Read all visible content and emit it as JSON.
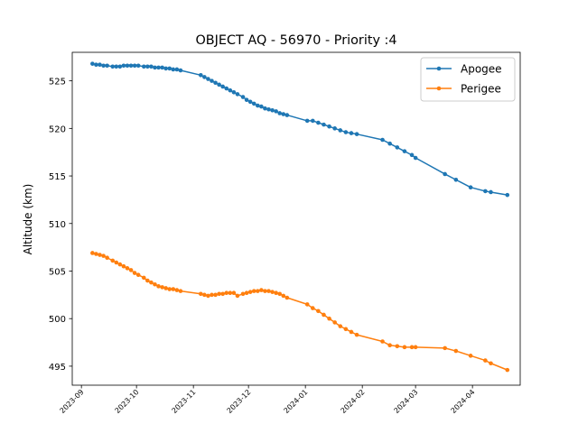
{
  "chart_data": {
    "type": "line",
    "title": "OBJECT AQ - 56970 - Priority :4",
    "xlabel": "",
    "ylabel": "Altitude (km)",
    "x_ticks": [
      "2023-09",
      "2023-10",
      "2023-11",
      "2023-12",
      "2024-01",
      "2024-02",
      "2024-03",
      "2024-04"
    ],
    "y_ticks": [
      495,
      500,
      505,
      510,
      515,
      520,
      525
    ],
    "xlim": [
      "2023-08-27",
      "2024-04-27"
    ],
    "ylim": [
      493.0,
      528.0
    ],
    "grid": false,
    "legend_position": "top-right",
    "series": [
      {
        "name": "Apogee",
        "color": "#1f77b4",
        "marker": "circle",
        "x": [
          "2023-09-07",
          "2023-09-09",
          "2023-09-11",
          "2023-09-13",
          "2023-09-15",
          "2023-09-18",
          "2023-09-20",
          "2023-09-22",
          "2023-09-24",
          "2023-09-26",
          "2023-09-28",
          "2023-09-30",
          "2023-10-02",
          "2023-10-05",
          "2023-10-07",
          "2023-10-09",
          "2023-10-11",
          "2023-10-13",
          "2023-10-15",
          "2023-10-17",
          "2023-10-19",
          "2023-10-21",
          "2023-10-23",
          "2023-10-25",
          "2023-11-05",
          "2023-11-07",
          "2023-11-09",
          "2023-11-11",
          "2023-11-13",
          "2023-11-15",
          "2023-11-17",
          "2023-11-19",
          "2023-11-21",
          "2023-11-23",
          "2023-11-25",
          "2023-11-28",
          "2023-11-30",
          "2023-12-02",
          "2023-12-04",
          "2023-12-06",
          "2023-12-08",
          "2023-12-10",
          "2023-12-12",
          "2023-12-14",
          "2023-12-16",
          "2023-12-18",
          "2023-12-20",
          "2023-12-22",
          "2024-01-02",
          "2024-01-05",
          "2024-01-08",
          "2024-01-11",
          "2024-01-14",
          "2024-01-17",
          "2024-01-20",
          "2024-01-23",
          "2024-01-26",
          "2024-01-29",
          "2024-02-12",
          "2024-02-16",
          "2024-02-20",
          "2024-02-24",
          "2024-02-28",
          "2024-03-01",
          "2024-03-17",
          "2024-03-23",
          "2024-03-31",
          "2024-04-08",
          "2024-04-11",
          "2024-04-20"
        ],
        "y": [
          526.8,
          526.7,
          526.7,
          526.6,
          526.6,
          526.5,
          526.5,
          526.5,
          526.6,
          526.6,
          526.6,
          526.6,
          526.6,
          526.5,
          526.5,
          526.5,
          526.4,
          526.4,
          526.4,
          526.3,
          526.3,
          526.2,
          526.2,
          526.1,
          525.6,
          525.4,
          525.2,
          525.0,
          524.8,
          524.6,
          524.4,
          524.2,
          524.0,
          523.8,
          523.6,
          523.3,
          523.0,
          522.8,
          522.6,
          522.4,
          522.3,
          522.1,
          522.0,
          521.9,
          521.8,
          521.6,
          521.5,
          521.4,
          520.8,
          520.8,
          520.6,
          520.4,
          520.2,
          520.0,
          519.8,
          519.6,
          519.5,
          519.4,
          518.8,
          518.4,
          518.0,
          517.6,
          517.2,
          516.9,
          515.2,
          514.6,
          513.8,
          513.4,
          513.3,
          513.0
        ]
      },
      {
        "name": "Perigee",
        "color": "#ff7f0e",
        "marker": "circle",
        "x": [
          "2023-09-07",
          "2023-09-09",
          "2023-09-11",
          "2023-09-13",
          "2023-09-15",
          "2023-09-18",
          "2023-09-20",
          "2023-09-22",
          "2023-09-24",
          "2023-09-26",
          "2023-09-28",
          "2023-09-30",
          "2023-10-02",
          "2023-10-05",
          "2023-10-07",
          "2023-10-09",
          "2023-10-11",
          "2023-10-13",
          "2023-10-15",
          "2023-10-17",
          "2023-10-19",
          "2023-10-21",
          "2023-10-23",
          "2023-10-25",
          "2023-11-05",
          "2023-11-07",
          "2023-11-09",
          "2023-11-11",
          "2023-11-13",
          "2023-11-15",
          "2023-11-17",
          "2023-11-19",
          "2023-11-21",
          "2023-11-23",
          "2023-11-25",
          "2023-11-28",
          "2023-11-30",
          "2023-12-02",
          "2023-12-04",
          "2023-12-06",
          "2023-12-08",
          "2023-12-10",
          "2023-12-12",
          "2023-12-14",
          "2023-12-16",
          "2023-12-18",
          "2023-12-20",
          "2023-12-22",
          "2024-01-02",
          "2024-01-05",
          "2024-01-08",
          "2024-01-11",
          "2024-01-14",
          "2024-01-17",
          "2024-01-20",
          "2024-01-23",
          "2024-01-26",
          "2024-01-29",
          "2024-02-12",
          "2024-02-16",
          "2024-02-20",
          "2024-02-24",
          "2024-02-28",
          "2024-03-01",
          "2024-03-17",
          "2024-03-23",
          "2024-03-31",
          "2024-04-08",
          "2024-04-11",
          "2024-04-20"
        ],
        "y": [
          506.9,
          506.8,
          506.7,
          506.6,
          506.4,
          506.1,
          505.9,
          505.7,
          505.5,
          505.3,
          505.1,
          504.8,
          504.6,
          504.3,
          504.0,
          503.8,
          503.6,
          503.4,
          503.3,
          503.2,
          503.1,
          503.1,
          503.0,
          502.9,
          502.6,
          502.5,
          502.4,
          502.5,
          502.5,
          502.6,
          502.6,
          502.7,
          502.7,
          502.7,
          502.4,
          502.6,
          502.7,
          502.8,
          502.9,
          502.9,
          503.0,
          502.9,
          502.9,
          502.8,
          502.7,
          502.6,
          502.4,
          502.2,
          501.5,
          501.1,
          500.8,
          500.4,
          500.0,
          499.6,
          499.2,
          498.9,
          498.6,
          498.3,
          497.6,
          497.2,
          497.1,
          497.0,
          497.0,
          497.0,
          496.9,
          496.6,
          496.1,
          495.6,
          495.3,
          494.6
        ]
      }
    ]
  }
}
